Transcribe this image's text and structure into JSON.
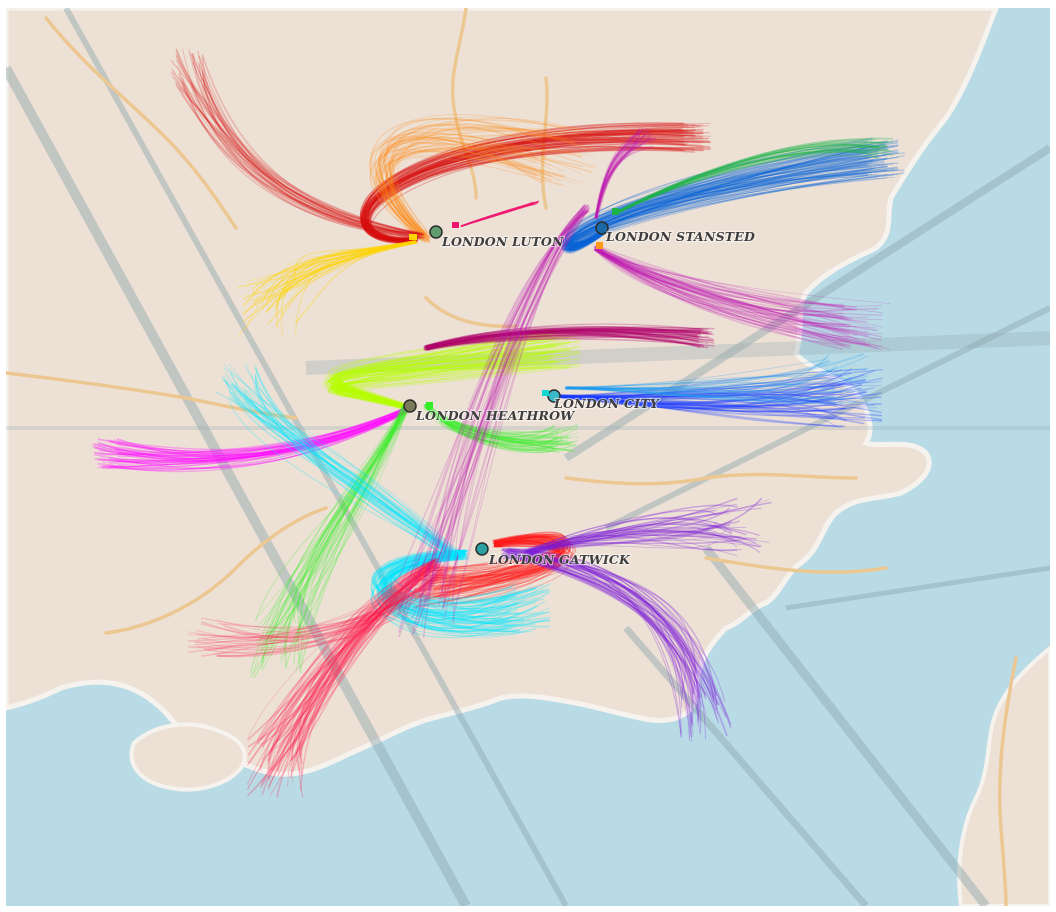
{
  "map": {
    "colors": {
      "land": "#ede1d6",
      "sea": "#b9dbe6",
      "coast": "#f3f0ec",
      "roads": "#ecc792",
      "shipping_lanes": "#8fa7ad"
    },
    "airports": [
      {
        "id": "luton",
        "label": "LONDON LUTON",
        "icon": "airport-marker-icon",
        "route_colors": [
          "#d81010",
          "#ff8a10",
          "#ffd400",
          "#f0146c"
        ]
      },
      {
        "id": "stansted",
        "label": "LONDON STANSTED",
        "icon": "airport-marker-icon",
        "route_colors": [
          "#0a64d8",
          "#c01ab0",
          "#1db34a",
          "#ff9a1a"
        ]
      },
      {
        "id": "heathrow",
        "label": "LONDON HEATHROW",
        "icon": "airport-marker-icon",
        "route_colors": [
          "#b8ff00",
          "#ff10ff",
          "#33ee22",
          "#b0006a"
        ]
      },
      {
        "id": "city",
        "label": "LONDON CITY",
        "icon": "airport-marker-icon",
        "route_colors": [
          "#1a3cff",
          "#1a9cf0",
          "#10d8d0"
        ]
      },
      {
        "id": "gatwick",
        "label": "LONDON GATWICK",
        "icon": "airport-marker-icon",
        "route_colors": [
          "#ff1a1a",
          "#00e6ff",
          "#7a1ad8",
          "#ff1a4c"
        ]
      }
    ]
  }
}
